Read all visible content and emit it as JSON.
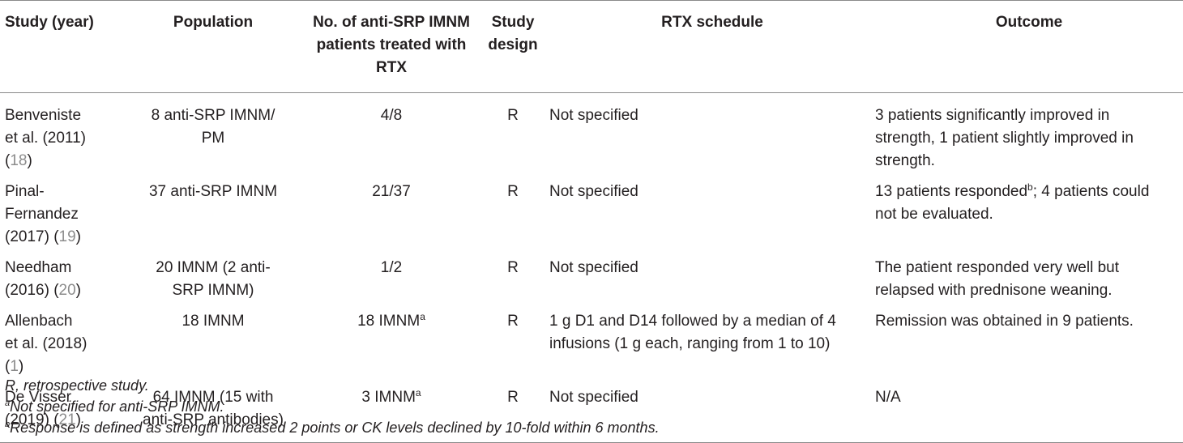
{
  "headers": {
    "study": "Study (year)",
    "population": "Population",
    "n_line1": "No. of anti-SRP IMNM",
    "n_line2": "patients treated with RTX",
    "design_line1": "Study",
    "design_line2": "design",
    "schedule": "RTX schedule",
    "outcome": "Outcome"
  },
  "rows": [
    {
      "study_l1": "Benveniste",
      "study_l2": "et al. (2011)",
      "study_l3": "(",
      "ref": "18",
      "study_close": ")",
      "pop_l1": "8 anti-SRP IMNM/",
      "pop_l2": "PM",
      "n": "4/8",
      "design": "R",
      "schedule_l1": "Not specified",
      "outcome_l1": "3 patients significantly improved in",
      "outcome_l2": "strength, 1 patient slightly improved in",
      "outcome_l3": "strength."
    },
    {
      "study_l1": "Pinal-",
      "study_l2": "Fernandez",
      "study_l3": "(2017) (",
      "ref": "19",
      "study_close": ")",
      "pop_l1": "37 anti-SRP IMNM",
      "n": "21/37",
      "design": "R",
      "schedule_l1": "Not specified",
      "outcome_l1a": "13 patients responded",
      "outcome_sup": "b",
      "outcome_l1b": "; 4 patients could",
      "outcome_l2": "not be evaluated."
    },
    {
      "study_l1": "Needham",
      "study_l2": "(2016) (",
      "ref": "20",
      "study_close": ")",
      "pop_l1": "20 IMNM (2 anti-",
      "pop_l2": "SRP IMNM)",
      "n": "1/2",
      "design": "R",
      "schedule_l1": "Not specified",
      "outcome_l1": "The patient responded very well but",
      "outcome_l2": "relapsed with prednisone weaning."
    },
    {
      "study_l1": "Allenbach",
      "study_l2": "et al. (2018)",
      "study_l3": "(",
      "ref": "1",
      "study_close": ")",
      "pop_l1": "18 IMNM",
      "n": "18 IMNM",
      "n_sup": "a",
      "design": "R",
      "schedule_l1": "1 g D1 and D14 followed by a median of 4",
      "schedule_l2": "infusions (1 g each, ranging from 1 to 10)",
      "outcome_l1": "Remission was obtained in 9 patients."
    },
    {
      "study_l1": "De Visser",
      "study_l2": "(2019) (",
      "ref": "21",
      "study_close": ")",
      "pop_l1": "64 IMNM (15 with",
      "pop_l2": "anti-SRP antibodies)",
      "n": "3 IMNM",
      "n_sup": "a",
      "design": "R",
      "schedule_l1": "Not specified",
      "outcome_l1": "N/A"
    }
  ],
  "footnotes": {
    "abbrev": "R, retrospective study.",
    "a_mark": "a",
    "a_text": "Not specified for anti-SRP IMNM.",
    "b_mark": "b",
    "b_text": "Response is defined as strength increased 2 points or CK levels declined by 10-fold within 6 months."
  },
  "colors": {
    "text": "#231f20",
    "ref_link": "#8c8c8c",
    "rule": "#8a8a8a"
  }
}
